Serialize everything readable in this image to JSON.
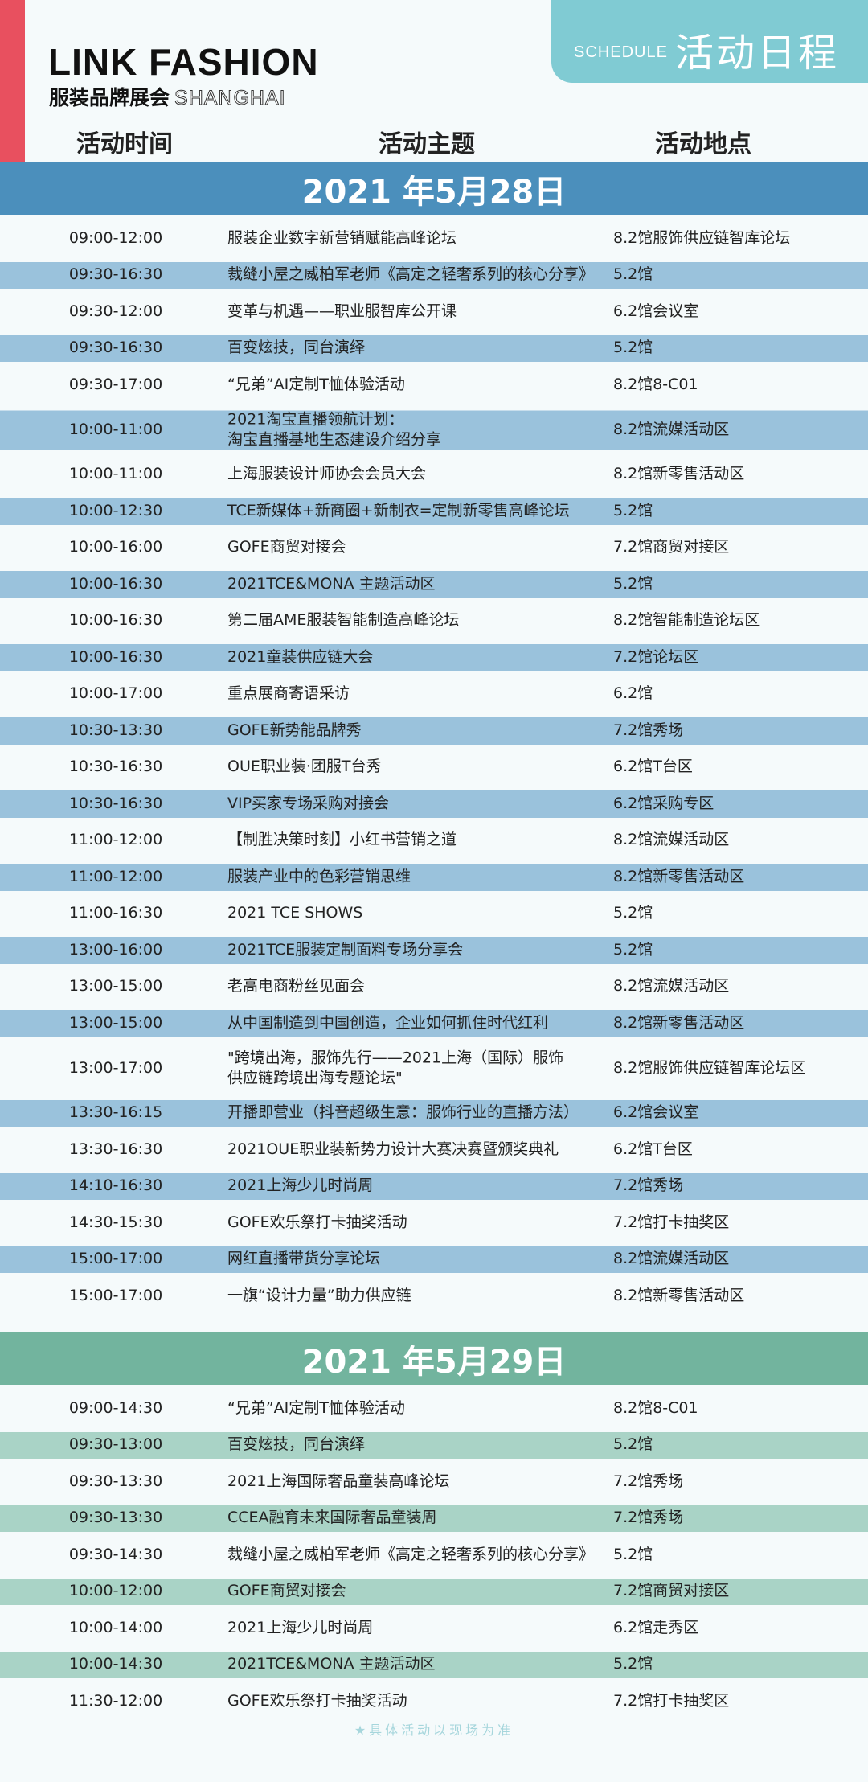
{
  "header": {
    "logo": "LINK FASHION",
    "logo_sub_cn": "服装品牌展会",
    "logo_sub_en": "SHANGHAI",
    "schedule_en": "SCHEDULE",
    "schedule_cn": "活动日程"
  },
  "columns": [
    "活动时间",
    "活动主题",
    "活动地点"
  ],
  "days": [
    {
      "title": "2021 年5月28日",
      "rows": [
        [
          "09:00-12:00",
          "服装企业数字新营销赋能高峰论坛",
          "8.2馆服饰供应链智库论坛"
        ],
        [
          "09:30-16:30",
          "裁缝小屋之威柏军老师《高定之轻奢系列的核心分享》",
          "5.2馆"
        ],
        [
          "09:30-12:00",
          "变革与机遇——职业服智库公开课",
          "6.2馆会议室"
        ],
        [
          "09:30-16:30",
          "百变炫技，同台演绎",
          "5.2馆"
        ],
        [
          "09:30-17:00",
          "“兄弟”AI定制T恤体验活动",
          "8.2馆8-C01"
        ],
        [
          "10:00-11:00",
          "2021淘宝直播领航计划：\n淘宝直播基地生态建设介绍分享",
          "8.2馆流媒活动区"
        ],
        [
          "10:00-11:00",
          "上海服装设计师协会会员大会",
          "8.2馆新零售活动区"
        ],
        [
          "10:00-12:30",
          "TCE新媒体+新商圈+新制衣=定制新零售高峰论坛",
          "5.2馆"
        ],
        [
          "10:00-16:00",
          "GOFE商贸对接会",
          "7.2馆商贸对接区"
        ],
        [
          "10:00-16:30",
          "2021TCE&MONA 主题活动区",
          "5.2馆"
        ],
        [
          "10:00-16:30",
          "第二届AME服装智能制造高峰论坛",
          "8.2馆智能制造论坛区"
        ],
        [
          "10:00-16:30",
          "2021童装供应链大会",
          "7.2馆论坛区"
        ],
        [
          "10:00-17:00",
          "重点展商寄语采访",
          "6.2馆"
        ],
        [
          "10:30-13:30",
          "GOFE新势能品牌秀",
          "7.2馆秀场"
        ],
        [
          "10:30-16:30",
          "OUE职业装·团服T台秀",
          "6.2馆T台区"
        ],
        [
          "10:30-16:30",
          "VIP买家专场采购对接会",
          "6.2馆采购专区"
        ],
        [
          "11:00-12:00",
          "【制胜决策时刻】小红书营销之道",
          "8.2馆流媒活动区"
        ],
        [
          "11:00-12:00",
          "服装产业中的色彩营销思维",
          "8.2馆新零售活动区"
        ],
        [
          "11:00-16:30",
          "2021 TCE SHOWS",
          "5.2馆"
        ],
        [
          "13:00-16:00",
          "2021TCE服装定制面料专场分享会",
          "5.2馆"
        ],
        [
          "13:00-15:00",
          "老高电商粉丝见面会",
          "8.2馆流媒活动区"
        ],
        [
          "13:00-15:00",
          "从中国制造到中国创造，企业如何抓住时代红利",
          "8.2馆新零售活动区"
        ],
        [
          "13:00-17:00",
          "\"跨境出海，服饰先行——2021上海（国际）服饰\n供应链跨境出海专题论坛\"",
          "8.2馆服饰供应链智库论坛区"
        ],
        [
          "13:30-16:15",
          "开播即营业（抖音超级生意：服饰行业的直播方法）",
          "6.2馆会议室"
        ],
        [
          "13:30-16:30",
          "2021OUE职业装新势力设计大赛决赛暨颁奖典礼",
          "6.2馆T台区"
        ],
        [
          "14:10-16:30",
          "2021上海少儿时尚周",
          "7.2馆秀场"
        ],
        [
          "14:30-15:30",
          "GOFE欢乐祭打卡抽奖活动",
          "7.2馆打卡抽奖区"
        ],
        [
          "15:00-17:00",
          "网红直播带货分享论坛",
          "8.2馆流媒活动区"
        ],
        [
          "15:00-17:00",
          "一旗“设计力量”助力供应链",
          "8.2馆新零售活动区"
        ]
      ]
    },
    {
      "title": "2021 年5月29日",
      "rows": [
        [
          "09:00-14:30",
          "“兄弟”AI定制T恤体验活动",
          "8.2馆8-C01"
        ],
        [
          "09:30-13:00",
          "百变炫技，同台演绎",
          "5.2馆"
        ],
        [
          "09:30-13:30",
          "2021上海国际奢品童装高峰论坛",
          "7.2馆秀场"
        ],
        [
          "09:30-13:30",
          "CCEA融育未来国际奢品童装周",
          "7.2馆秀场"
        ],
        [
          "09:30-14:30",
          "裁缝小屋之威柏军老师《高定之轻奢系列的核心分享》",
          "5.2馆"
        ],
        [
          "10:00-12:00",
          "GOFE商贸对接会",
          "7.2馆商贸对接区"
        ],
        [
          "10:00-14:00",
          "2021上海少儿时尚周",
          "6.2馆走秀区"
        ],
        [
          "10:00-14:30",
          "2021TCE&MONA 主题活动区",
          "5.2馆"
        ],
        [
          "11:30-12:00",
          "GOFE欢乐祭打卡抽奖活动",
          "7.2馆打卡抽奖区"
        ]
      ]
    }
  ],
  "footer": "★具体活动以现场为准"
}
